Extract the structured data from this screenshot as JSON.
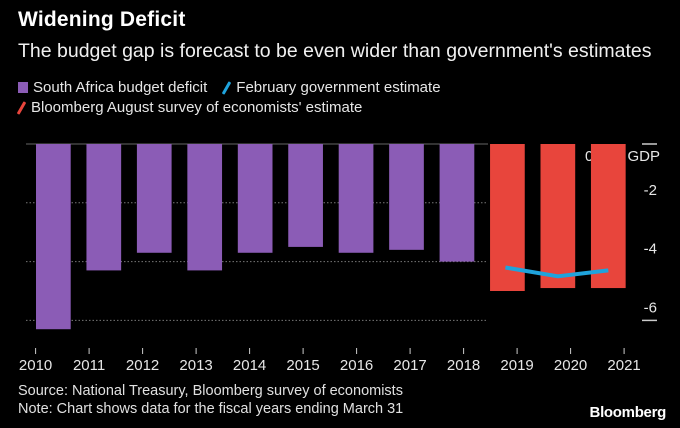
{
  "chart_data": {
    "type": "bar",
    "title": "Widening Deficit",
    "subtitle": "The budget gap is forecast to be even wider than government's estimates",
    "categories": [
      "2010",
      "2011",
      "2012",
      "2013",
      "2014",
      "2015",
      "2016",
      "2017",
      "2018",
      "2019",
      "2020",
      "2021"
    ],
    "series": [
      {
        "name": "South Africa budget deficit",
        "type": "bar",
        "color": "#8b5cb6",
        "values": [
          -6.3,
          -4.3,
          -3.7,
          -4.3,
          -3.7,
          -3.5,
          -3.7,
          -3.6,
          -4.0,
          null,
          null,
          null
        ]
      },
      {
        "name": "Bloomberg August survey of economists' estimate",
        "type": "bar",
        "color": "#e8453c",
        "values": [
          null,
          null,
          null,
          null,
          null,
          null,
          null,
          null,
          null,
          -5.0,
          -4.9,
          -4.9
        ]
      },
      {
        "name": "February government estimate",
        "type": "line",
        "color": "#1fa3dc",
        "values": [
          null,
          null,
          null,
          null,
          null,
          null,
          null,
          null,
          null,
          -4.2,
          -4.5,
          -4.3
        ]
      }
    ],
    "ylabel": "0% of GDP",
    "yticks": [
      {
        "value": 0,
        "label": "0% of GDP"
      },
      {
        "value": -2,
        "label": "-2"
      },
      {
        "value": -4,
        "label": "-4"
      },
      {
        "value": -6,
        "label": "-6"
      }
    ],
    "ylim": [
      -6.5,
      0
    ],
    "grid": true,
    "legend": "top-left",
    "source": "Source: National Treasury, Bloomberg survey of economists",
    "note": "Note: Chart shows data for the fiscal years ending March 31",
    "brand": "Bloomberg"
  }
}
